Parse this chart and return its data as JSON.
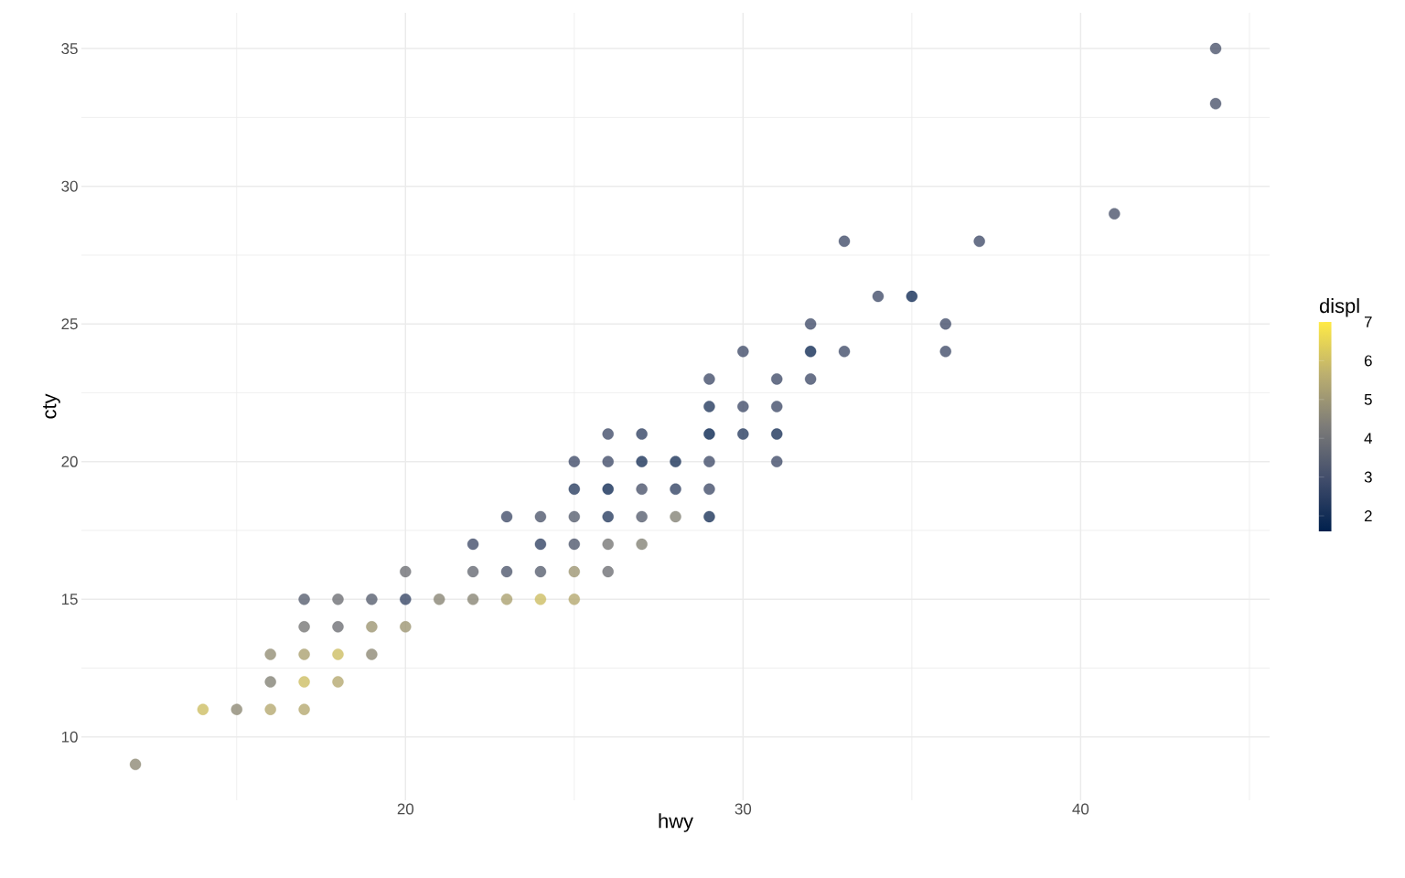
{
  "chart_data": {
    "type": "scatter",
    "xlabel": "hwy",
    "ylabel": "cty",
    "clabel": "displ",
    "x": [
      12,
      14,
      15,
      16,
      16,
      16,
      17,
      17,
      17,
      17,
      17,
      18,
      18,
      18,
      18,
      19,
      19,
      19,
      20,
      20,
      20,
      21,
      22,
      22,
      22,
      23,
      23,
      23,
      24,
      24,
      24,
      24,
      25,
      25,
      25,
      25,
      25,
      25,
      26,
      26,
      26,
      26,
      26,
      26,
      27,
      27,
      27,
      27,
      27,
      28,
      28,
      28,
      29,
      29,
      29,
      29,
      29,
      29,
      30,
      30,
      30,
      31,
      31,
      31,
      31,
      32,
      32,
      32,
      33,
      33,
      34,
      35,
      36,
      36,
      37,
      41,
      44,
      44
    ],
    "values": [
      9,
      11,
      11,
      11,
      12,
      13,
      11,
      12,
      13,
      14,
      15,
      12,
      13,
      14,
      15,
      13,
      14,
      15,
      14,
      15,
      16,
      15,
      15,
      16,
      17,
      15,
      16,
      18,
      15,
      16,
      17,
      18,
      15,
      16,
      17,
      18,
      19,
      20,
      16,
      17,
      18,
      19,
      20,
      21,
      17,
      18,
      19,
      20,
      21,
      18,
      19,
      20,
      18,
      19,
      20,
      21,
      22,
      23,
      21,
      22,
      24,
      20,
      21,
      22,
      23,
      23,
      24,
      25,
      24,
      28,
      26,
      26,
      24,
      25,
      28,
      29,
      33,
      35
    ],
    "cvalues": [
      4.7,
      6,
      4.7,
      5.5,
      4.5,
      4.8,
      5.5,
      6,
      5.3,
      4.2,
      3.5,
      5.5,
      6,
      4,
      4,
      4.7,
      5,
      3.5,
      5,
      2.8,
      4,
      4.6,
      4.6,
      3.8,
      3,
      5.3,
      3.3,
      3,
      6,
      3.5,
      2.7,
      3.3,
      5.5,
      5,
      3.3,
      3.5,
      2.5,
      3,
      4,
      4.2,
      2.5,
      2,
      3,
      3,
      4.5,
      3.5,
      3.2,
      2.2,
      2.7,
      4.5,
      2.7,
      2.2,
      2.2,
      3,
      3,
      1.8,
      2.4,
      3,
      2.5,
      3,
      3,
      3,
      2.2,
      3,
      3,
      3,
      2,
      3,
      3,
      3,
      3,
      2,
      3,
      3,
      3,
      3.2,
      3.2,
      3.2
    ],
    "xlim": [
      10.4,
      45.6
    ],
    "ylim": [
      7.7,
      36.3
    ],
    "xticks": [
      {
        "value": 15,
        "label": null
      },
      20,
      {
        "value": 25,
        "label": null
      },
      30,
      {
        "value": 35,
        "label": null
      },
      40,
      {
        "value": 45,
        "label": null
      }
    ],
    "yticks": [
      10,
      {
        "value": 12.5,
        "label": null
      },
      15,
      {
        "value": 17.5,
        "label": null
      },
      20,
      {
        "value": 22.5,
        "label": null
      },
      25,
      {
        "value": 27.5,
        "label": null
      },
      30,
      {
        "value": 32.5,
        "label": null
      },
      35
    ],
    "clim": [
      1.6,
      7
    ],
    "cticks": [
      2,
      3,
      4,
      5,
      6,
      7
    ],
    "grid": true,
    "marker": "circle"
  }
}
